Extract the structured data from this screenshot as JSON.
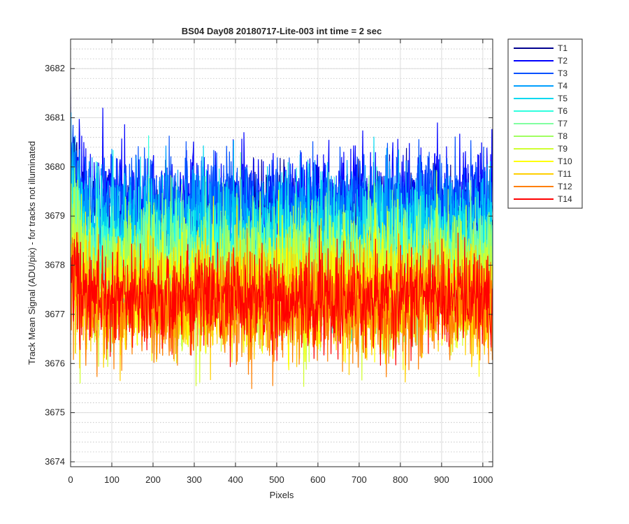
{
  "chart_data": {
    "type": "line",
    "title": "BS04 Day08 20180717-Lite-003 int time = 2 sec",
    "xlabel": "Pixels",
    "ylabel": "Track Mean Signal (ADU/pix) - for tracks not illuminated",
    "xlim": [
      0,
      1024
    ],
    "ylim": [
      3673.9,
      3682.6
    ],
    "xticks": [
      0,
      100,
      200,
      300,
      400,
      500,
      600,
      700,
      800,
      900,
      1000
    ],
    "yticks": [
      3674,
      3675,
      3676,
      3677,
      3678,
      3679,
      3680,
      3681,
      3682
    ],
    "grid": true,
    "minor_grid": "y",
    "legend_position": "outside-top-right",
    "num_points": 1024,
    "series": [
      {
        "name": "T1",
        "color": "#00008f",
        "mean": 3679.0,
        "spread": 0.9
      },
      {
        "name": "T2",
        "color": "#0000ff",
        "mean": 3679.3,
        "spread": 1.0
      },
      {
        "name": "T3",
        "color": "#0050ff",
        "mean": 3679.2,
        "spread": 1.0
      },
      {
        "name": "T4",
        "color": "#009fff",
        "mean": 3678.8,
        "spread": 1.1
      },
      {
        "name": "T5",
        "color": "#00d8f0",
        "mean": 3678.5,
        "spread": 1.1
      },
      {
        "name": "T6",
        "color": "#30ffdf",
        "mean": 3678.2,
        "spread": 1.1
      },
      {
        "name": "T7",
        "color": "#80ffa0",
        "mean": 3678.0,
        "spread": 1.1
      },
      {
        "name": "T8",
        "color": "#a0ff60",
        "mean": 3677.9,
        "spread": 1.1
      },
      {
        "name": "T9",
        "color": "#d0ff30",
        "mean": 3677.6,
        "spread": 1.1
      },
      {
        "name": "T10",
        "color": "#ffff00",
        "mean": 3677.4,
        "spread": 1.1
      },
      {
        "name": "T11",
        "color": "#ffcf00",
        "mean": 3677.3,
        "spread": 1.0
      },
      {
        "name": "T12",
        "color": "#ff7f00",
        "mean": 3677.2,
        "spread": 1.0
      },
      {
        "name": "T14",
        "color": "#ff0000",
        "mean": 3677.3,
        "spread": 0.9
      }
    ]
  }
}
